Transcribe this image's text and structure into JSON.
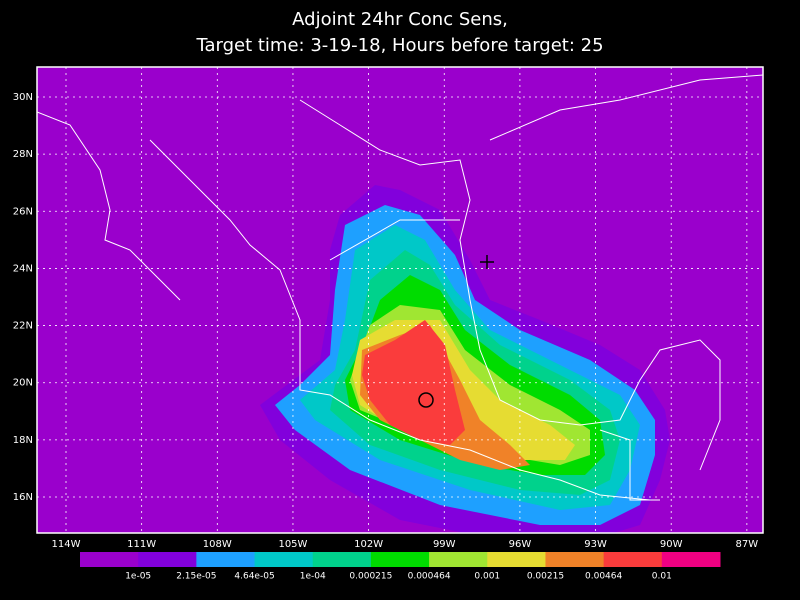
{
  "title": [
    "Adjoint 24hr Conc Sens,",
    "Target time: 3-19-18, Hours before target: 25"
  ],
  "map": {
    "lonlim": [
      -115.15,
      -86.36
    ],
    "latlim": [
      14.74,
      31.05
    ],
    "lonticks": [
      {
        "value": -114,
        "label": "114W"
      },
      {
        "value": -111,
        "label": "111W"
      },
      {
        "value": -108,
        "label": "108W"
      },
      {
        "value": -105,
        "label": "105W"
      },
      {
        "value": -102,
        "label": "102W"
      },
      {
        "value": -99,
        "label": "99W"
      },
      {
        "value": -96,
        "label": "96W"
      },
      {
        "value": -93,
        "label": "93W"
      },
      {
        "value": -90,
        "label": "90W"
      },
      {
        "value": -87,
        "label": "87W"
      }
    ],
    "latticks": [
      {
        "value": 16,
        "label": "16N"
      },
      {
        "value": 18,
        "label": "18N"
      },
      {
        "value": 20,
        "label": "20N"
      },
      {
        "value": 22,
        "label": "22N"
      },
      {
        "value": 24,
        "label": "24N"
      },
      {
        "value": 26,
        "label": "26N"
      },
      {
        "value": 28,
        "label": "28N"
      },
      {
        "value": 30,
        "label": "30N"
      }
    ],
    "grid": true
  },
  "colorbar": {
    "colors": [
      "#9a00cc",
      "#8200dc",
      "#1ea0ff",
      "#00c8c8",
      "#00d28c",
      "#00dc00",
      "#a0e632",
      "#e6dc32",
      "#f08228",
      "#fa3c3c",
      "#f00082"
    ],
    "levels": [
      {
        "value": 1e-05,
        "label": "1e-05"
      },
      {
        "value": 2.15e-05,
        "label": "2.15e-05"
      },
      {
        "value": 4.64e-05,
        "label": "4.64e-05"
      },
      {
        "value": 0.0001,
        "label": "1e-04"
      },
      0.000215,
      0.000464,
      0.001,
      0.00215,
      0.00464,
      0.01
    ]
  }
}
